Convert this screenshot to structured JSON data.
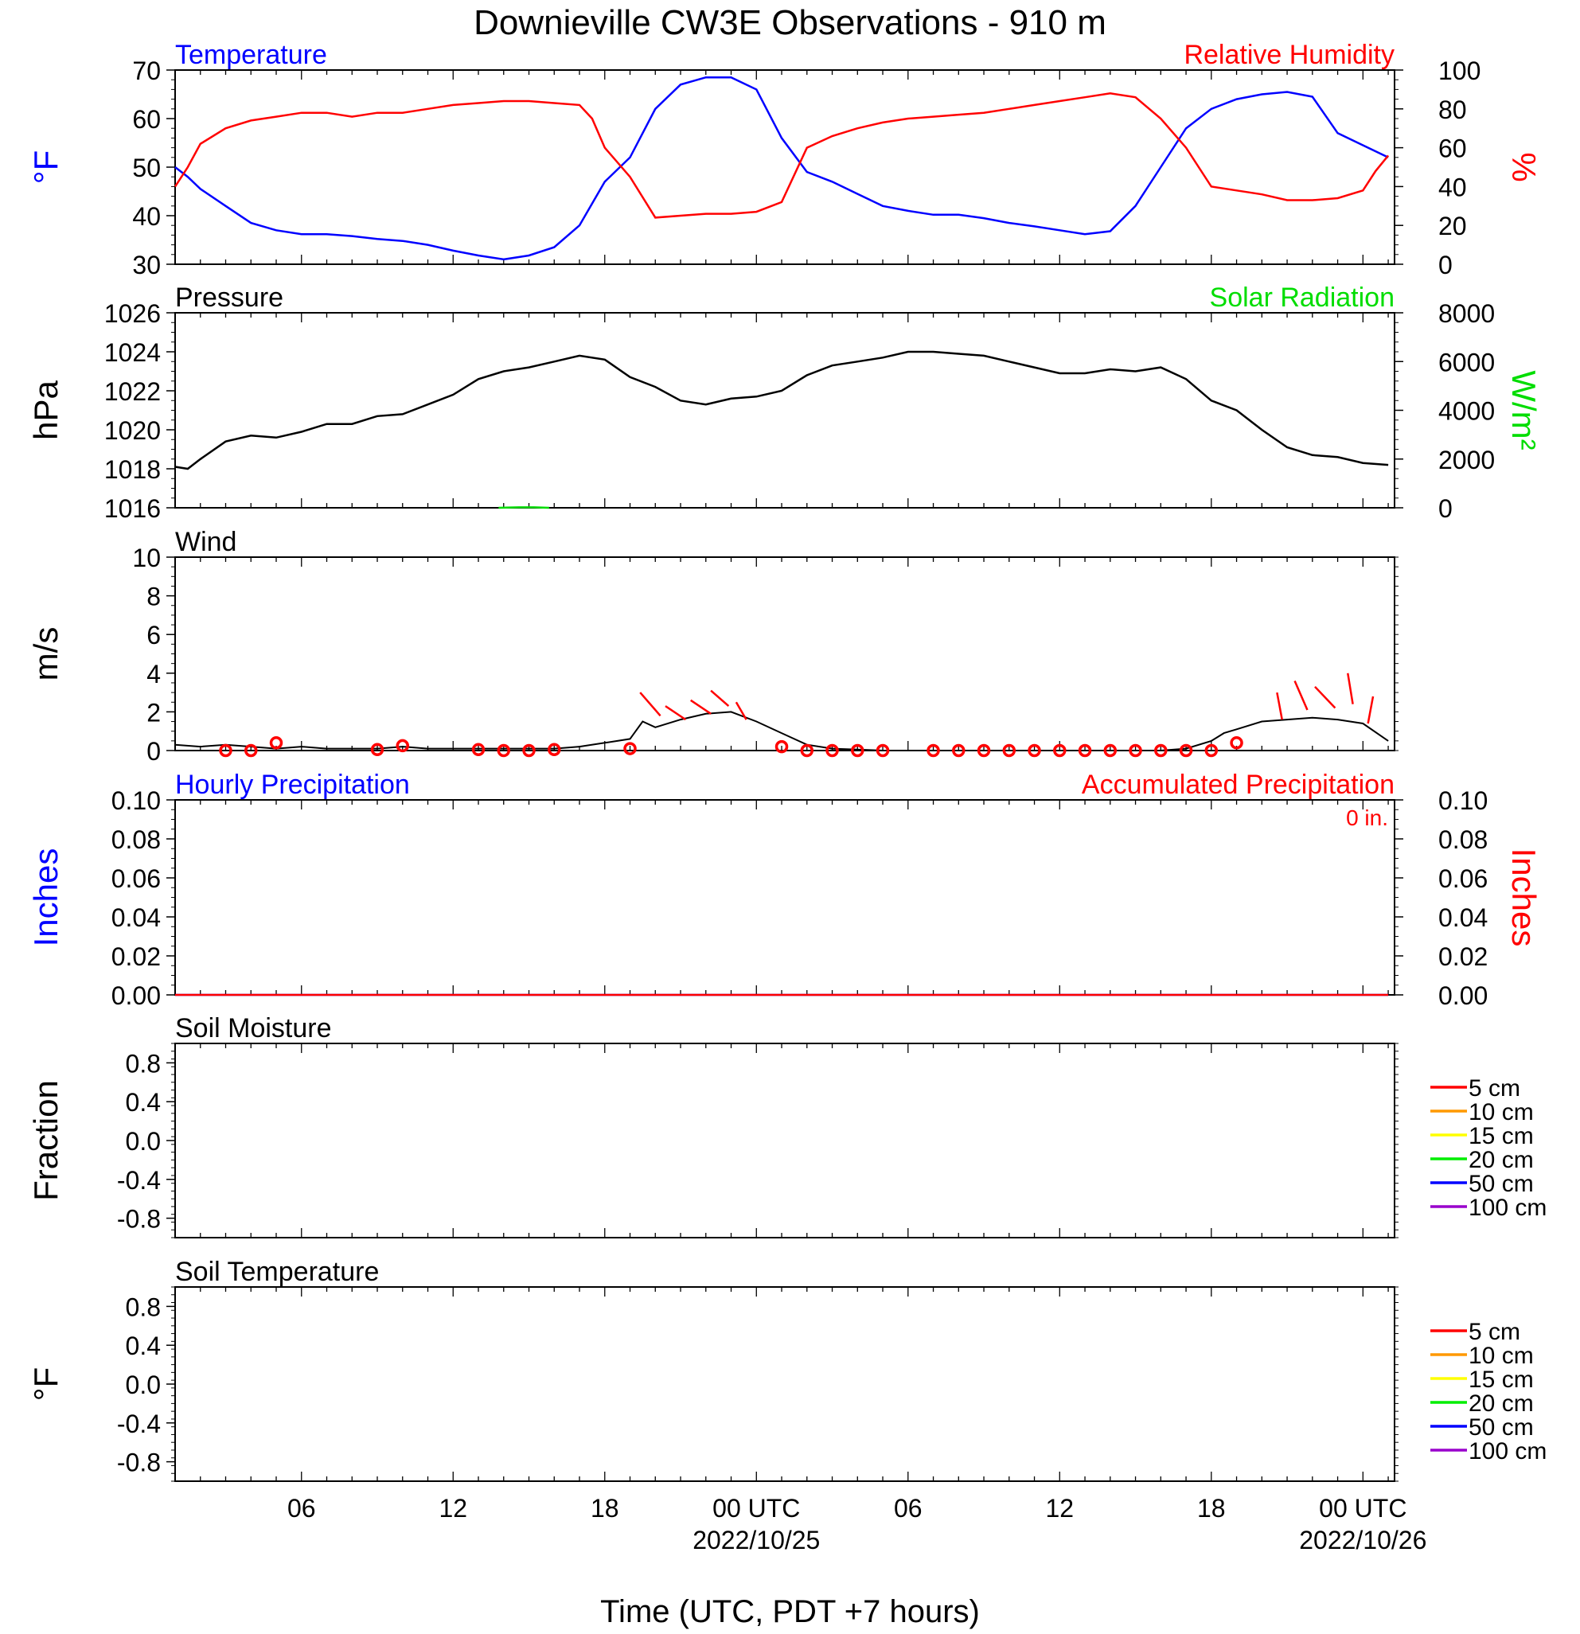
{
  "title": "Downieville CW3E Observations - 910 m",
  "xlabel": "Time (UTC, PDT +7 hours)",
  "x_axis": {
    "start_hour": 0,
    "end_hour": 48.25,
    "tick_labels": [
      {
        "hour": 5,
        "label": "06",
        "date": ""
      },
      {
        "hour": 11,
        "label": "12",
        "date": ""
      },
      {
        "hour": 17,
        "label": "18",
        "date": ""
      },
      {
        "hour": 23,
        "label": "00 UTC",
        "date": "2022/10/25"
      },
      {
        "hour": 29,
        "label": "06",
        "date": ""
      },
      {
        "hour": 35,
        "label": "12",
        "date": ""
      },
      {
        "hour": 41,
        "label": "18",
        "date": ""
      },
      {
        "hour": 47,
        "label": "00 UTC",
        "date": "2022/10/26"
      }
    ]
  },
  "colors": {
    "temperature": "#0000ff",
    "humidity": "#ff0000",
    "solar": "#00dd00",
    "pressure": "#000000",
    "wind": "#000000",
    "gust": "#ff0000",
    "hourly_precip": "#0000ff",
    "accum_precip": "#ff0000"
  },
  "legend_depths": [
    {
      "label": "5 cm",
      "color": "#ff0000"
    },
    {
      "label": "10 cm",
      "color": "#ff9900"
    },
    {
      "label": "15 cm",
      "color": "#ffff00"
    },
    {
      "label": "20 cm",
      "color": "#00ee00"
    },
    {
      "label": "50 cm",
      "color": "#0000ff"
    },
    {
      "label": "100 cm",
      "color": "#9900cc"
    }
  ],
  "chart_data": [
    {
      "type": "line",
      "id": "temp_rh",
      "title_left": "Temperature",
      "title_right": "Relative Humidity",
      "ylabel_left": "°F",
      "ylabel_right": "%",
      "ylim": [
        30,
        70
      ],
      "yticks": [
        "30",
        "40",
        "50",
        "60",
        "70"
      ],
      "ylim_right": [
        0,
        100
      ],
      "yticks_right": [
        "0",
        "20",
        "40",
        "60",
        "80",
        "100"
      ],
      "series": [
        {
          "name": "Temperature",
          "axis": "left",
          "x": [
            0,
            0.5,
            1,
            2,
            3,
            4,
            5,
            6,
            7,
            8,
            9,
            10,
            11,
            12,
            13,
            14,
            15,
            16,
            17,
            18,
            19,
            20,
            21,
            22,
            23,
            24,
            25,
            26,
            27,
            28,
            29,
            30,
            31,
            32,
            33,
            34,
            35,
            36,
            37,
            38,
            39,
            40,
            41,
            42,
            43,
            44,
            45,
            46,
            47,
            48
          ],
          "y": [
            50,
            48,
            45.5,
            42,
            38.5,
            37,
            36.2,
            36.2,
            35.8,
            35.2,
            34.8,
            34,
            32.8,
            31.8,
            31,
            31.8,
            33.5,
            38,
            47,
            52,
            62,
            67,
            68.5,
            68.5,
            66,
            56,
            49,
            47,
            44.5,
            42,
            41,
            40.2,
            40.2,
            39.5,
            38.5,
            37.8,
            37,
            36.2,
            36.8,
            42,
            50,
            58,
            62,
            64,
            65,
            65.5,
            64.5,
            57,
            54.5,
            52
          ]
        },
        {
          "name": "Relative Humidity",
          "axis": "right",
          "x": [
            0,
            0.5,
            1,
            2,
            3,
            4,
            5,
            6,
            7,
            8,
            9,
            10,
            11,
            12,
            13,
            14,
            15,
            16,
            16.5,
            17,
            18,
            19,
            20,
            21,
            22,
            23,
            24,
            25,
            26,
            27,
            28,
            29,
            30,
            31,
            32,
            33,
            34,
            35,
            36,
            37,
            38,
            39,
            40,
            41,
            42,
            43,
            44,
            45,
            46,
            47,
            47.5,
            48
          ],
          "y": [
            40,
            50,
            62,
            70,
            74,
            76,
            78,
            78,
            76,
            78,
            78,
            80,
            82,
            83,
            84,
            84,
            83,
            82,
            75,
            60,
            45,
            24,
            25,
            26,
            26,
            27,
            32,
            60,
            66,
            70,
            73,
            75,
            76,
            77,
            78,
            80,
            82,
            84,
            86,
            88,
            86,
            75,
            60,
            40,
            38,
            36,
            33,
            33,
            34,
            38,
            48,
            56
          ]
        }
      ]
    },
    {
      "type": "line",
      "id": "pressure",
      "title_left": "Pressure",
      "title_right": "Solar Radiation",
      "ylabel_left": "hPa",
      "ylabel_right": "W/m²",
      "ylim": [
        1016,
        1026
      ],
      "yticks": [
        "1016",
        "1018",
        "1020",
        "1022",
        "1024",
        "1026"
      ],
      "ylim_right": [
        0,
        8000
      ],
      "yticks_right": [
        "0",
        "2000",
        "4000",
        "6000",
        "8000"
      ],
      "series": [
        {
          "name": "Pressure",
          "axis": "left",
          "x": [
            0,
            0.5,
            1,
            2,
            3,
            4,
            5,
            6,
            7,
            8,
            9,
            10,
            11,
            12,
            13,
            14,
            15,
            16,
            17,
            18,
            19,
            20,
            21,
            22,
            23,
            24,
            25,
            26,
            27,
            28,
            29,
            30,
            31,
            32,
            33,
            34,
            35,
            36,
            37,
            38,
            39,
            40,
            41,
            42,
            43,
            44,
            45,
            46,
            47,
            48
          ],
          "y": [
            1018.1,
            1018.0,
            1018.5,
            1019.4,
            1019.7,
            1019.6,
            1019.9,
            1020.3,
            1020.3,
            1020.7,
            1020.8,
            1021.3,
            1021.8,
            1022.6,
            1023.0,
            1023.2,
            1023.5,
            1023.8,
            1023.6,
            1022.7,
            1022.2,
            1021.5,
            1021.3,
            1021.6,
            1021.7,
            1022.0,
            1022.8,
            1023.3,
            1023.5,
            1023.7,
            1024.0,
            1024.0,
            1023.9,
            1023.8,
            1023.5,
            1023.2,
            1022.9,
            1022.9,
            1023.1,
            1023.0,
            1023.2,
            1022.6,
            1021.5,
            1021.0,
            1020.0,
            1019.1,
            1018.7,
            1018.6,
            1018.3,
            1018.2
          ]
        },
        {
          "name": "Solar Radiation",
          "axis": "right",
          "x": [
            12.8,
            13.6,
            14.2,
            14.8
          ],
          "y": [
            0,
            20,
            20,
            0
          ]
        }
      ]
    },
    {
      "type": "line",
      "id": "wind",
      "title_left": "Wind",
      "ylabel_left": "m/s",
      "ylim": [
        0,
        10
      ],
      "yticks": [
        "0",
        "2",
        "4",
        "6",
        "8",
        "10"
      ],
      "series": [
        {
          "name": "Wind",
          "axis": "left",
          "x": [
            0,
            1,
            2,
            3,
            4,
            5,
            6,
            7,
            8,
            9,
            10,
            11,
            12,
            13,
            14,
            15,
            16,
            17,
            18,
            18.5,
            19,
            20,
            21,
            22,
            23,
            24,
            25,
            26,
            27,
            28,
            29,
            30,
            31,
            32,
            33,
            34,
            35,
            36,
            37,
            38,
            39,
            40,
            41,
            41.5,
            42,
            43,
            44,
            45,
            46,
            47,
            48
          ],
          "y": [
            0.3,
            0.2,
            0.3,
            0.2,
            0.1,
            0.2,
            0.1,
            0.1,
            0.1,
            0.2,
            0.1,
            0.1,
            0.1,
            0.1,
            0.1,
            0.1,
            0.2,
            0.4,
            0.6,
            1.5,
            1.2,
            1.6,
            1.9,
            2.0,
            1.5,
            0.9,
            0.3,
            0.1,
            0.05,
            0,
            0,
            0,
            0,
            0,
            0,
            0,
            0,
            0,
            0,
            0,
            0,
            0.1,
            0.5,
            0.9,
            1.1,
            1.5,
            1.6,
            1.7,
            1.6,
            1.4,
            0.5
          ]
        },
        {
          "name": "Gust",
          "axis": "left",
          "marker": "circle",
          "x": [
            2,
            3,
            4,
            8,
            9,
            12,
            13,
            14,
            15,
            18,
            24,
            25,
            26,
            27,
            28,
            30,
            31,
            32,
            33,
            34,
            35,
            36,
            37,
            38,
            39,
            40,
            41,
            42
          ],
          "y": [
            0,
            0,
            0.4,
            0.05,
            0.25,
            0.05,
            0,
            0,
            0.05,
            0.1,
            0.2,
            0,
            0,
            0,
            0,
            0,
            0,
            0,
            0,
            0,
            0,
            0,
            0,
            0,
            0,
            0,
            0,
            0.4
          ]
        }
      ],
      "wind_barbs": [
        {
          "x": 18.8,
          "from": [
            18.4,
            3.0
          ],
          "to": [
            19.2,
            1.8
          ]
        },
        {
          "x": 19.8,
          "from": [
            19.4,
            2.3
          ],
          "to": [
            20.2,
            1.6
          ]
        },
        {
          "x": 20.8,
          "from": [
            20.4,
            2.6
          ],
          "to": [
            21.2,
            1.9
          ]
        },
        {
          "x": 21.6,
          "from": [
            21.2,
            3.1
          ],
          "to": [
            21.9,
            2.3
          ]
        },
        {
          "x": 22.5,
          "from": [
            22.2,
            2.5
          ],
          "to": [
            22.6,
            1.6
          ]
        },
        {
          "x": 43.8,
          "from": [
            43.6,
            3.0
          ],
          "to": [
            43.8,
            1.6
          ]
        },
        {
          "x": 44.7,
          "from": [
            44.3,
            3.6
          ],
          "to": [
            44.8,
            2.1
          ]
        },
        {
          "x": 45.6,
          "from": [
            45.1,
            3.3
          ],
          "to": [
            45.9,
            2.2
          ]
        },
        {
          "x": 46.6,
          "from": [
            46.4,
            4.0
          ],
          "to": [
            46.6,
            2.4
          ]
        },
        {
          "x": 47.3,
          "from": [
            47.4,
            2.8
          ],
          "to": [
            47.2,
            1.4
          ]
        }
      ]
    },
    {
      "type": "line",
      "id": "precip",
      "title_left": "Hourly Precipitation",
      "title_right": "Accumulated Precipitation",
      "annotation": "0 in.",
      "ylabel_left": "Inches",
      "ylabel_right": "Inches",
      "ylim": [
        0,
        0.1
      ],
      "yticks": [
        "0.00",
        "0.02",
        "0.04",
        "0.06",
        "0.08",
        "0.10"
      ],
      "ylim_right": [
        0,
        0.1
      ],
      "yticks_right": [
        "0.00",
        "0.02",
        "0.04",
        "0.06",
        "0.08",
        "0.10"
      ],
      "series": [
        {
          "name": "Hourly Precipitation",
          "axis": "left",
          "x": [
            0,
            48
          ],
          "y": [
            0,
            0
          ]
        },
        {
          "name": "Accumulated Precipitation",
          "axis": "right",
          "x": [
            0,
            48
          ],
          "y": [
            0,
            0
          ]
        }
      ]
    },
    {
      "type": "line",
      "id": "soil_moisture",
      "title_left": "Soil Moisture",
      "ylabel_left": "Fraction",
      "ylim": [
        -1,
        1
      ],
      "yticks": [
        "-0.8",
        "-0.4",
        "0.0",
        "0.4",
        "0.8"
      ],
      "legend": [
        "5 cm",
        "10 cm",
        "15 cm",
        "20 cm",
        "50 cm",
        "100 cm"
      ],
      "series": []
    },
    {
      "type": "line",
      "id": "soil_temperature",
      "title_left": "Soil Temperature",
      "ylabel_left": "°F",
      "ylim": [
        -1,
        1
      ],
      "yticks": [
        "-0.8",
        "-0.4",
        "0.0",
        "0.4",
        "0.8"
      ],
      "legend": [
        "5 cm",
        "10 cm",
        "15 cm",
        "20 cm",
        "50 cm",
        "100 cm"
      ],
      "series": []
    }
  ]
}
